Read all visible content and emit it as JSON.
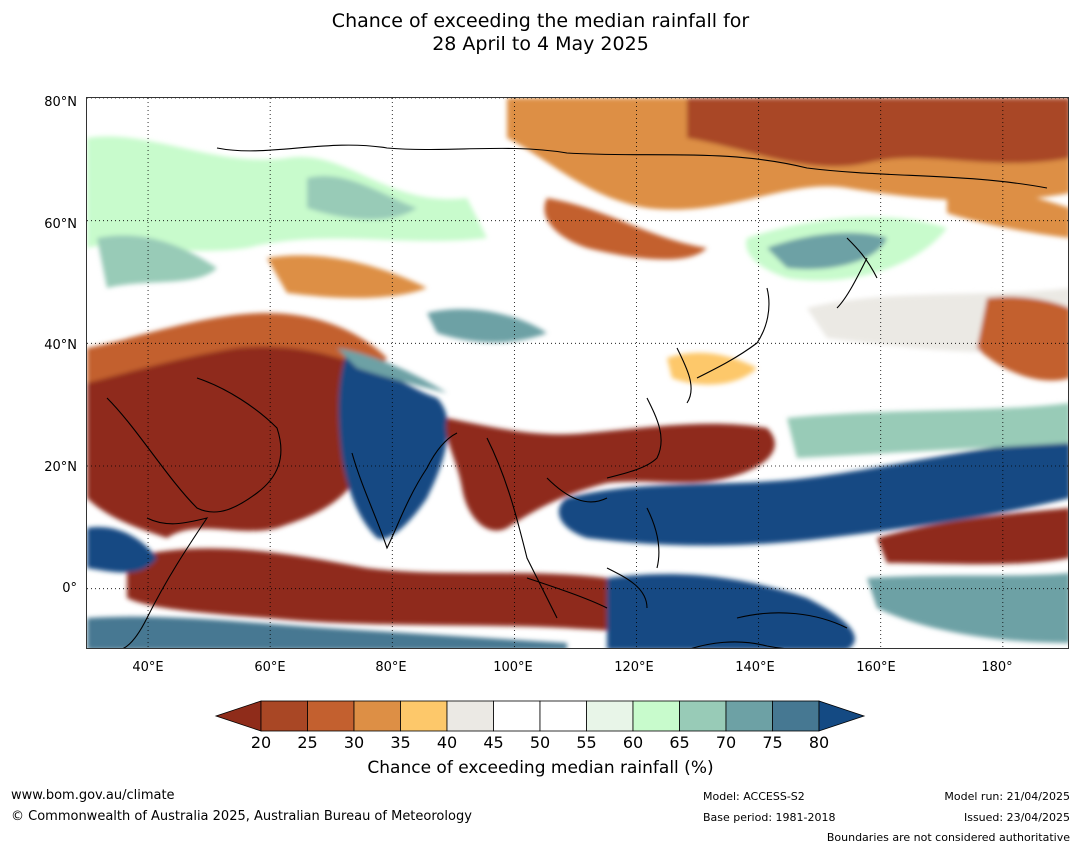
{
  "title": {
    "line1": "Chance of exceeding the median rainfall for",
    "line2": "28 April to 4 May 2025"
  },
  "axes": {
    "lat_labels": [
      "80°N",
      "60°N",
      "40°N",
      "20°N",
      "0°"
    ],
    "lon_labels": [
      "40°E",
      "60°E",
      "80°E",
      "100°E",
      "120°E",
      "140°E",
      "160°E",
      "180°"
    ],
    "lat_range": [
      -10,
      80
    ],
    "lon_range": [
      30,
      191
    ]
  },
  "colorbar": {
    "label": "Chance of exceeding median rainfall (%)",
    "ticks": [
      "20",
      "25",
      "30",
      "35",
      "40",
      "45",
      "50",
      "55",
      "60",
      "65",
      "70",
      "75",
      "80"
    ],
    "colors": {
      "below_20": "#8f2c1a",
      "20_25": "#a94725",
      "25_30": "#c3602f",
      "30_35": "#dd8f45",
      "35_40": "#fdc86a",
      "40_45": "#ebe9e4",
      "45_50": "#ffffff",
      "50_55": "#ffffff",
      "55_60": "#e8f5e8",
      "60_65": "#c8fbcc",
      "65_70": "#98cbb7",
      "70_75": "#6da1a5",
      "75_80": "#467892",
      "above_80": "#144a83"
    }
  },
  "footer": {
    "website": "www.bom.gov.au/climate",
    "copyright": "© Commonwealth of Australia 2025, Australian Bureau of Meteorology",
    "model": "Model: ACCESS-S2",
    "base_period": "Base period: 1981-2018",
    "model_run": "Model run: 21/04/2025",
    "issued": "Issued: 23/04/2025",
    "disclaimer": "Boundaries are not considered authoritative"
  }
}
